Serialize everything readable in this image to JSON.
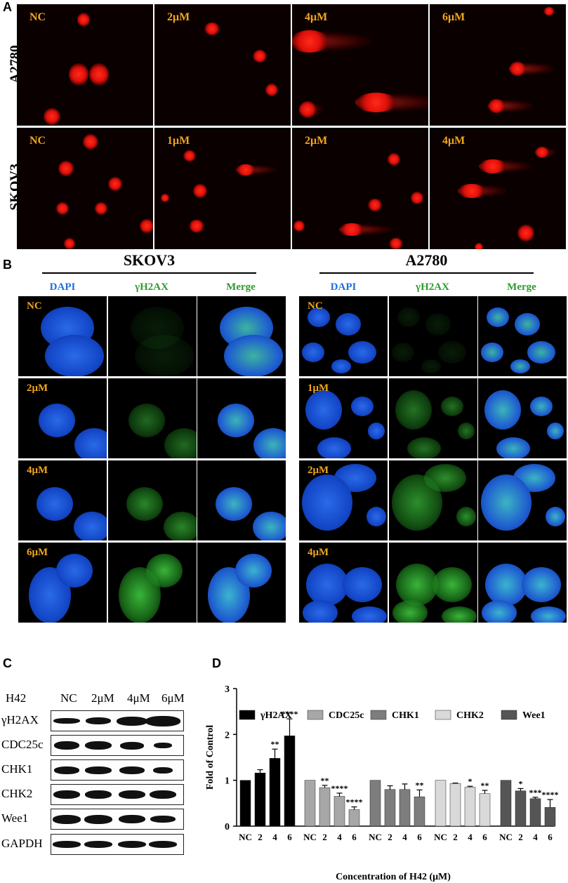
{
  "panelA": {
    "letter": "A",
    "rows": [
      {
        "label": "A2780",
        "tiles": [
          "NC",
          "2μM",
          "4μM",
          "6μM"
        ]
      },
      {
        "label": "SKOV3",
        "tiles": [
          "NC",
          "1μM",
          "2μM",
          "4μM"
        ]
      }
    ]
  },
  "panelB": {
    "letter": "B",
    "groups": [
      {
        "title": "SKOV3",
        "channels": [
          "DAPI",
          "γH2AX",
          "Merge"
        ],
        "rows": [
          "NC",
          "2μM",
          "4μM",
          "6μM"
        ]
      },
      {
        "title": "A2780",
        "channels": [
          "DAPI",
          "γH2AX",
          "Merge"
        ],
        "rows": [
          "NC",
          "1μM",
          "2μM",
          "4μM"
        ]
      }
    ],
    "colors": {
      "dapi": "#1f6fe0",
      "h2ax": "#2e9b2e",
      "label": "#f0a51c"
    }
  },
  "panelC": {
    "letter": "C",
    "treatment_label": "H42",
    "lanes": [
      "NC",
      "2μM",
      "4μM",
      "6μM"
    ],
    "proteins": [
      "γH2AX",
      "CDC25c",
      "CHK1",
      "CHK2",
      "Wee1",
      "GAPDH"
    ]
  },
  "panelD": {
    "letter": "D",
    "chart_data": {
      "type": "bar",
      "ylabel": "Fold of Control",
      "xlabel": "Concentration of H42 (μM)",
      "ylim": [
        0,
        3
      ],
      "yticks": [
        "0",
        "1",
        "2",
        "3"
      ],
      "categories": [
        "NC",
        "2",
        "4",
        "6"
      ],
      "legend_position": "top",
      "series": [
        {
          "name": "γH2AX",
          "color": "#000000",
          "values": [
            1.0,
            1.16,
            1.48,
            1.97
          ],
          "errors": [
            0,
            0.07,
            0.2,
            0.37
          ],
          "sig": [
            "",
            "",
            "**",
            "****"
          ]
        },
        {
          "name": "CDC25c",
          "color": "#a7a7a7",
          "values": [
            1.0,
            0.84,
            0.65,
            0.36
          ],
          "errors": [
            0,
            0.05,
            0.07,
            0.06
          ],
          "sig": [
            "",
            "**",
            "****",
            "****"
          ]
        },
        {
          "name": "CHK1",
          "color": "#7d7d7d",
          "values": [
            1.0,
            0.8,
            0.8,
            0.64
          ],
          "errors": [
            0,
            0.08,
            0.12,
            0.15
          ],
          "sig": [
            "",
            "",
            "",
            "**"
          ]
        },
        {
          "name": "CHK2",
          "color": "#d9d9d9",
          "values": [
            1.0,
            0.93,
            0.85,
            0.71
          ],
          "errors": [
            0,
            0.01,
            0.02,
            0.07
          ],
          "sig": [
            "",
            "",
            "*",
            "**"
          ]
        },
        {
          "name": "Wee1",
          "color": "#555555",
          "values": [
            1.0,
            0.77,
            0.6,
            0.41
          ],
          "errors": [
            0,
            0.05,
            0.03,
            0.17
          ],
          "sig": [
            "",
            "*",
            "***",
            "****"
          ]
        }
      ]
    }
  }
}
